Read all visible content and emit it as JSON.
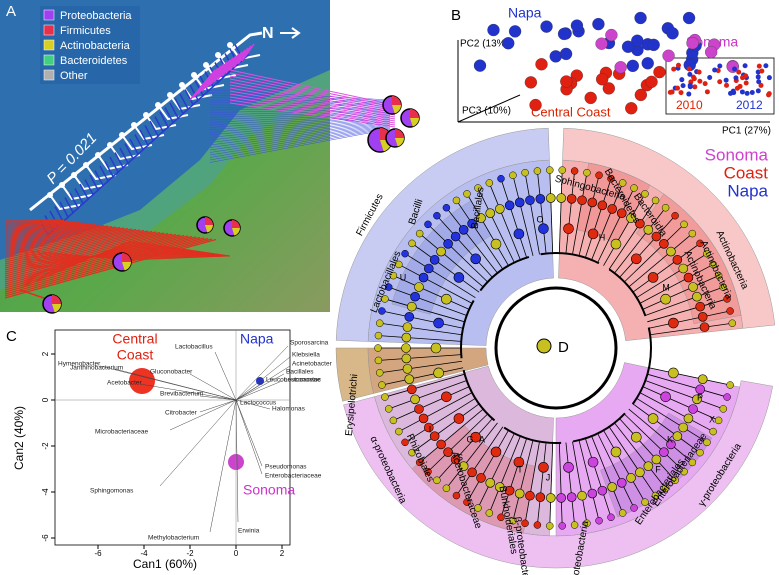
{
  "panel_a": {
    "letter": "A",
    "north": "N",
    "p_value": "P = 0.021",
    "legend": [
      "Proteobacteria",
      "Firmicutes",
      "Actinobacteria",
      "Bacteroidetes",
      "Other"
    ]
  },
  "panel_b": {
    "letter": "B",
    "napa": "Napa",
    "sonoma": "Sonoma",
    "central_coast": "Central Coast",
    "pc1": "PC1 (27%)",
    "pc2": "PC2 (13%)",
    "pc3": "PC3 (10%)",
    "years": [
      "2010",
      "2012"
    ]
  },
  "panel_c": {
    "letter": "C",
    "group_central": [
      "Central",
      "Coast"
    ],
    "group_napa": "Napa",
    "group_sonoma": "Sonoma",
    "x_label": "Can1 (60%)",
    "y_label": "Can2 (40%)",
    "xticks": [
      -6,
      -4,
      -2,
      0,
      2
    ],
    "yticks": [
      2,
      0,
      -2,
      -4,
      -6
    ],
    "taxa": [
      "Hymenobacter",
      "Janthinobacterium",
      "Acetobacter",
      "Gluconobacter",
      "Brevibacterium",
      "Lactobacillus",
      "Sporosarcina",
      "Klebsiella",
      "Acinetobacter",
      "Bacillales",
      "Leuconostoc",
      "Leuconostocaceae",
      "Lactococcus",
      "Halomonas",
      "Citrobacter",
      "Microbacteriaceae",
      "Pseudomonas",
      "Enterobacteriaceae",
      "Sphingomonas",
      "Methylobacterium",
      "Erwinia"
    ]
  },
  "panel_d": {
    "letter": "D",
    "legend": [
      "Sonoma",
      "Coast",
      "Napa"
    ],
    "clades": [
      "Firmicutes",
      "Bacilli",
      "Bacillales",
      "Lactobacillales",
      "Bacteroidetes",
      "Sphingobacteria",
      "Bacteroidia",
      "Actinobacteria",
      "Actinobacteria",
      "Actinobacteria",
      "Erysipelotrichi",
      "α-proteobacteria",
      "Rhizobiales",
      "Acetobacteraceae",
      "Burkholderiales",
      "β-proteobacteria",
      "Proteobacteria",
      "Enterobacteriales",
      "Enterobacteriaceae",
      "γ-proteobacteria"
    ],
    "markers": [
      "O",
      "H",
      "M",
      "U",
      "P",
      "X",
      "K",
      "F",
      "S",
      "G",
      "A",
      "T",
      "J",
      "I"
    ]
  }
}
